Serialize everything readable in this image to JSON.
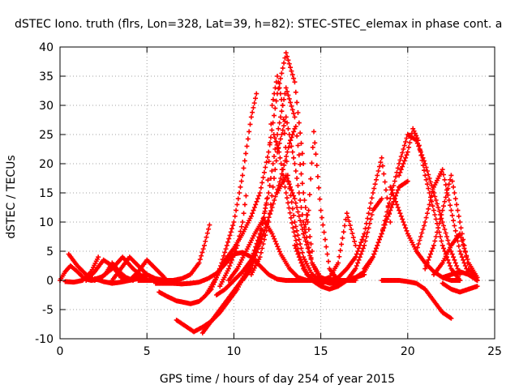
{
  "chart_data": {
    "type": "scatter",
    "title": "dSTEC Iono. truth (flrs, Lon=328, Lat=39, h=82): STEC-STEC_elemax in phase cont. a",
    "xlabel": "GPS time / hours of day 254 of year 2015",
    "ylabel": "dSTEC  / TECUs",
    "xlim": [
      0,
      25
    ],
    "ylim": [
      -10,
      40
    ],
    "xticks": [
      0,
      5,
      10,
      15,
      20,
      25
    ],
    "yticks": [
      -10,
      -5,
      0,
      5,
      10,
      15,
      20,
      25,
      30,
      35,
      40
    ],
    "grid": true,
    "marker": "+",
    "series_color": "#ff0000",
    "series": [
      {
        "x": [
          0.0,
          0.3,
          0.6,
          1.0,
          1.4,
          1.8,
          2.2,
          2.6,
          3.0,
          3.4,
          3.8,
          4.2
        ],
        "y": [
          0.0,
          1.5,
          2.5,
          1.5,
          0.3,
          0.0,
          0.2,
          1.0,
          3.0,
          1.5,
          0.5,
          0.0
        ]
      },
      {
        "x": [
          0.3,
          0.8,
          1.3,
          1.8,
          2.2
        ],
        "y": [
          -0.2,
          -0.3,
          0.0,
          1.5,
          4.0
        ]
      },
      {
        "x": [
          0.5,
          1.0,
          1.5,
          2.0
        ],
        "y": [
          4.5,
          2.5,
          1.0,
          0.0
        ]
      },
      {
        "x": [
          1.5,
          2.0,
          2.5,
          3.0,
          3.5,
          4.0,
          4.5,
          5.0
        ],
        "y": [
          0.0,
          1.5,
          3.5,
          2.5,
          0.5,
          0.0,
          0.3,
          0.6
        ]
      },
      {
        "x": [
          1.8,
          2.4,
          3.0,
          3.6,
          4.2,
          4.8
        ],
        "y": [
          0.0,
          0.6,
          2.0,
          4.0,
          2.0,
          0.5
        ]
      },
      {
        "x": [
          2.0,
          2.5,
          3.0,
          3.5,
          4.0,
          4.5,
          5.0
        ],
        "y": [
          0.3,
          -0.2,
          -0.5,
          -0.3,
          0.0,
          0.6,
          1.0
        ]
      },
      {
        "x": [
          3.0,
          3.5,
          4.0,
          4.5,
          5.0,
          5.5,
          6.0
        ],
        "y": [
          0.0,
          2.0,
          4.0,
          2.5,
          1.0,
          0.3,
          0.0
        ]
      },
      {
        "x": [
          4.0,
          4.5,
          5.0,
          5.5,
          6.0
        ],
        "y": [
          0.0,
          1.5,
          3.5,
          2.0,
          0.5
        ]
      },
      {
        "x": [
          4.5,
          5.0,
          5.5,
          6.0,
          6.5,
          7.0,
          7.5,
          8.0,
          8.3,
          8.6
        ],
        "y": [
          0.0,
          0.0,
          0.0,
          0.0,
          0.0,
          0.3,
          1.0,
          3.0,
          6.0,
          9.5
        ]
      },
      {
        "x": [
          5.5,
          6.0,
          6.5,
          7.0,
          7.5,
          8.0,
          8.5,
          9.0,
          9.5,
          10.0,
          10.5,
          11.0,
          11.5,
          12.0,
          12.5,
          13.0,
          13.5,
          14.0,
          14.5
        ],
        "y": [
          -0.5,
          -0.5,
          -0.5,
          -0.6,
          -0.5,
          -0.3,
          0.3,
          1.2,
          2.8,
          4.5,
          4.8,
          4.0,
          2.5,
          1.0,
          0.2,
          0.0,
          0.0,
          0.0,
          0.0
        ]
      },
      {
        "x": [
          5.7,
          6.2,
          6.7,
          7.2,
          7.5,
          8.0,
          8.3,
          8.7,
          9.0,
          9.3,
          9.6,
          10.0,
          10.5,
          11.0,
          11.3
        ],
        "y": [
          -2.0,
          -2.8,
          -3.5,
          -3.8,
          -4.0,
          -3.6,
          -2.8,
          -1.5,
          0.5,
          3.0,
          6.0,
          10.0,
          18.0,
          28.0,
          32.0
        ]
      },
      {
        "x": [
          6.7,
          7.2,
          7.7,
          8.2,
          8.7,
          9.2,
          9.7,
          10.2,
          10.7,
          11.2,
          11.7,
          12.2,
          12.7,
          13.2,
          13.5
        ],
        "y": [
          -6.8,
          -7.8,
          -8.8,
          -8.0,
          -7.0,
          -5.5,
          -3.5,
          -1.5,
          1.5,
          4.5,
          8.0,
          12.5,
          17.5,
          23.5,
          26.0
        ]
      },
      {
        "x": [
          8.2,
          8.7,
          9.2,
          9.7,
          10.2,
          10.7,
          11.2,
          11.6
        ],
        "y": [
          -9.0,
          -7.0,
          -5.0,
          -3.0,
          -1.0,
          1.0,
          4.5,
          8.5
        ]
      },
      {
        "x": [
          8.5,
          9.0,
          9.5,
          10.0,
          10.5,
          11.0,
          11.5,
          12.0,
          12.5,
          13.0,
          13.5,
          14.0
        ],
        "y": [
          -2.0,
          0.5,
          3.5,
          5.5,
          8.0,
          11.0,
          15.0,
          22.0,
          32.0,
          39.0,
          34.0,
          20.0
        ]
      },
      {
        "x": [
          9.0,
          9.5,
          10.0,
          10.5,
          11.0,
          11.5,
          12.0,
          12.5,
          13.0,
          13.5,
          14.0,
          14.5
        ],
        "y": [
          -2.5,
          -1.5,
          0.0,
          1.5,
          3.5,
          8.0,
          15.0,
          25.0,
          33.0,
          28.0,
          15.0,
          5.0
        ]
      },
      {
        "x": [
          9.2,
          9.7,
          10.2,
          10.5,
          10.7
        ],
        "y": [
          -1.0,
          2.0,
          6.0,
          10.0,
          14.5
        ]
      },
      {
        "x": [
          9.7,
          10.2,
          10.7,
          11.2,
          11.7,
          12.2,
          12.7,
          13.2,
          13.7,
          14.2
        ],
        "y": [
          0.0,
          2.0,
          5.0,
          8.0,
          10.5,
          8.0,
          4.5,
          2.0,
          0.5,
          0.0
        ]
      },
      {
        "x": [
          10.5,
          11.0,
          11.5,
          11.9,
          12.2,
          12.5,
          12.8,
          13.1,
          13.5,
          14.0,
          14.5,
          15.0
        ],
        "y": [
          0.0,
          2.0,
          6.5,
          14.0,
          30.0,
          35.0,
          30.0,
          18.0,
          10.0,
          4.0,
          1.0,
          0.0
        ]
      },
      {
        "x": [
          11.0,
          11.5,
          12.0,
          12.5,
          13.0,
          13.5,
          14.0,
          14.5,
          15.0,
          15.5,
          16.0
        ],
        "y": [
          1.0,
          4.0,
          10.0,
          22.0,
          28.0,
          20.0,
          10.0,
          3.0,
          0.0,
          -0.5,
          -0.5
        ]
      },
      {
        "x": [
          12.3,
          12.6,
          13.0,
          13.4,
          13.8,
          14.2,
          14.6,
          15.0,
          15.5,
          16.0,
          16.5,
          17.0
        ],
        "y": [
          25.0,
          22.0,
          15.0,
          9.0,
          4.0,
          1.0,
          0.0,
          0.0,
          0.0,
          0.0,
          0.0,
          0.0
        ]
      },
      {
        "x": [
          12.5,
          13.0,
          13.5,
          14.0,
          14.5,
          15.0,
          15.5,
          16.0,
          16.5,
          17.0,
          17.5
        ],
        "y": [
          15.0,
          18.0,
          14.0,
          8.0,
          3.0,
          0.5,
          0.0,
          -0.5,
          0.0,
          0.5,
          1.0
        ]
      },
      {
        "x": [
          13.5,
          14.0,
          14.5,
          15.0,
          15.5,
          16.0,
          16.5,
          17.0,
          17.5,
          18.0,
          18.5
        ],
        "y": [
          6.0,
          2.0,
          0.0,
          -1.0,
          -1.5,
          -1.0,
          0.0,
          2.0,
          6.0,
          12.0,
          14.0
        ]
      },
      {
        "x": [
          14.0,
          14.3,
          14.6,
          15.0,
          15.5,
          16.0
        ],
        "y": [
          8.0,
          12.0,
          25.5,
          12.0,
          2.0,
          0.0
        ]
      },
      {
        "x": [
          14.5,
          15.0,
          15.5,
          16.0,
          16.5,
          17.0
        ],
        "y": [
          0.0,
          0.0,
          0.5,
          3.0,
          11.5,
          6.0
        ]
      },
      {
        "x": [
          15.0,
          15.5,
          16.0,
          16.5,
          17.0,
          17.5,
          18.0,
          18.5,
          19.0
        ],
        "y": [
          -0.5,
          0.0,
          0.5,
          2.0,
          4.0,
          8.0,
          15.0,
          21.0,
          10.0
        ]
      },
      {
        "x": [
          16.0,
          16.5,
          17.0,
          17.5,
          18.0,
          18.5,
          19.0,
          19.5,
          20.0
        ],
        "y": [
          0.0,
          0.0,
          0.5,
          1.5,
          4.0,
          8.0,
          12.0,
          16.0,
          17.0
        ]
      },
      {
        "x": [
          17.5,
          18.0,
          18.5,
          19.0,
          19.5,
          20.0,
          20.5,
          21.0,
          21.5,
          22.0,
          22.5,
          23.0
        ],
        "y": [
          2.0,
          4.0,
          8.0,
          14.0,
          20.0,
          25.0,
          24.0,
          20.0,
          15.0,
          10.0,
          5.0,
          1.0
        ]
      },
      {
        "x": [
          18.5,
          19.0,
          19.5,
          20.0,
          20.5,
          21.0,
          21.5,
          22.0,
          22.5
        ],
        "y": [
          0.0,
          0.0,
          0.0,
          -0.2,
          -0.5,
          -1.5,
          -3.5,
          -5.5,
          -6.5
        ]
      },
      {
        "x": [
          19.0,
          19.5,
          20.0,
          20.5,
          21.0,
          21.5,
          22.0,
          22.5,
          23.0
        ],
        "y": [
          16.0,
          12.0,
          8.0,
          5.0,
          3.0,
          1.5,
          0.5,
          0.0,
          0.0
        ]
      },
      {
        "x": [
          19.5,
          20.0,
          20.3,
          20.6,
          21.0,
          21.5,
          22.0,
          22.5,
          23.0
        ],
        "y": [
          18.0,
          22.0,
          26.0,
          24.0,
          18.0,
          12.0,
          6.0,
          2.0,
          0.0
        ]
      },
      {
        "x": [
          20.5,
          21.0,
          21.5,
          22.0,
          22.5,
          23.0,
          23.5,
          24.0
        ],
        "y": [
          5.0,
          10.0,
          16.0,
          19.0,
          12.0,
          5.0,
          1.0,
          0.0
        ]
      },
      {
        "x": [
          21.0,
          21.5,
          22.0,
          22.5,
          23.0,
          23.5,
          24.0
        ],
        "y": [
          2.0,
          6.0,
          12.0,
          18.0,
          10.0,
          2.0,
          0.0
        ]
      },
      {
        "x": [
          21.5,
          22.0,
          22.5,
          23.0,
          23.5,
          24.0
        ],
        "y": [
          1.0,
          3.0,
          6.0,
          8.0,
          3.0,
          0.5
        ]
      },
      {
        "x": [
          22.0,
          22.5,
          23.0,
          23.5,
          24.0
        ],
        "y": [
          -0.5,
          -1.5,
          -2.0,
          -1.5,
          -1.0
        ]
      },
      {
        "x": [
          22.0,
          22.5,
          23.0,
          23.5,
          24.0
        ],
        "y": [
          0.5,
          1.0,
          1.5,
          1.0,
          0.0
        ]
      }
    ]
  }
}
